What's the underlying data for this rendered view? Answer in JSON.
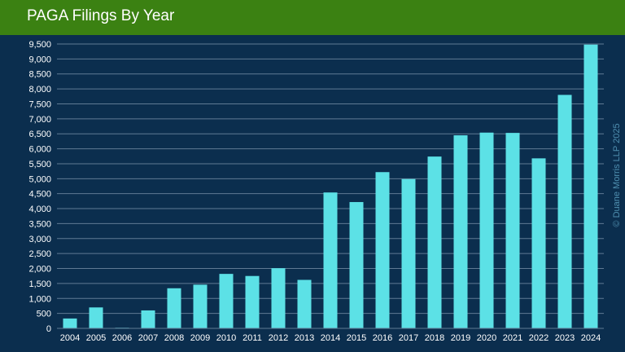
{
  "header": {
    "title": "PAGA Filings By Year"
  },
  "watermark": "© Duane Morris LLP 2025",
  "colors": {
    "background": "#0b2e4e",
    "header_bar": "#3b8112",
    "bar": "#5ce1e6",
    "gridline": "#5f7a94",
    "text": "#ffffff",
    "watermark": "#4f8fb0"
  },
  "chart_data": {
    "type": "bar",
    "title": "PAGA Filings By Year",
    "xlabel": "",
    "ylabel": "",
    "categories": [
      "2004",
      "2005",
      "2006",
      "2007",
      "2008",
      "2009",
      "2010",
      "2011",
      "2012",
      "2013",
      "2014",
      "2015",
      "2016",
      "2017",
      "2018",
      "2019",
      "2020",
      "2021",
      "2022",
      "2023",
      "2024"
    ],
    "values": [
      330,
      700,
      20,
      600,
      1340,
      1460,
      1820,
      1750,
      2010,
      1620,
      4540,
      4220,
      5220,
      4990,
      5740,
      6450,
      6540,
      6530,
      5680,
      7800,
      9480
    ],
    "ylim": [
      0,
      9500
    ],
    "yticks": [
      0,
      500,
      1000,
      1500,
      2000,
      2500,
      3000,
      3500,
      4000,
      4500,
      5000,
      5500,
      6000,
      6500,
      7000,
      7500,
      8000,
      8500,
      9000,
      9500
    ],
    "ytick_labels": [
      "0",
      "500",
      "1,000",
      "1,500",
      "2,000",
      "2,500",
      "3,000",
      "3,500",
      "4,000",
      "4,500",
      "5,000",
      "5,500",
      "6,000",
      "6,500",
      "7,000",
      "7,500",
      "8,000",
      "8,500",
      "9,000",
      "9,500"
    ],
    "grid": true,
    "legend": false
  }
}
